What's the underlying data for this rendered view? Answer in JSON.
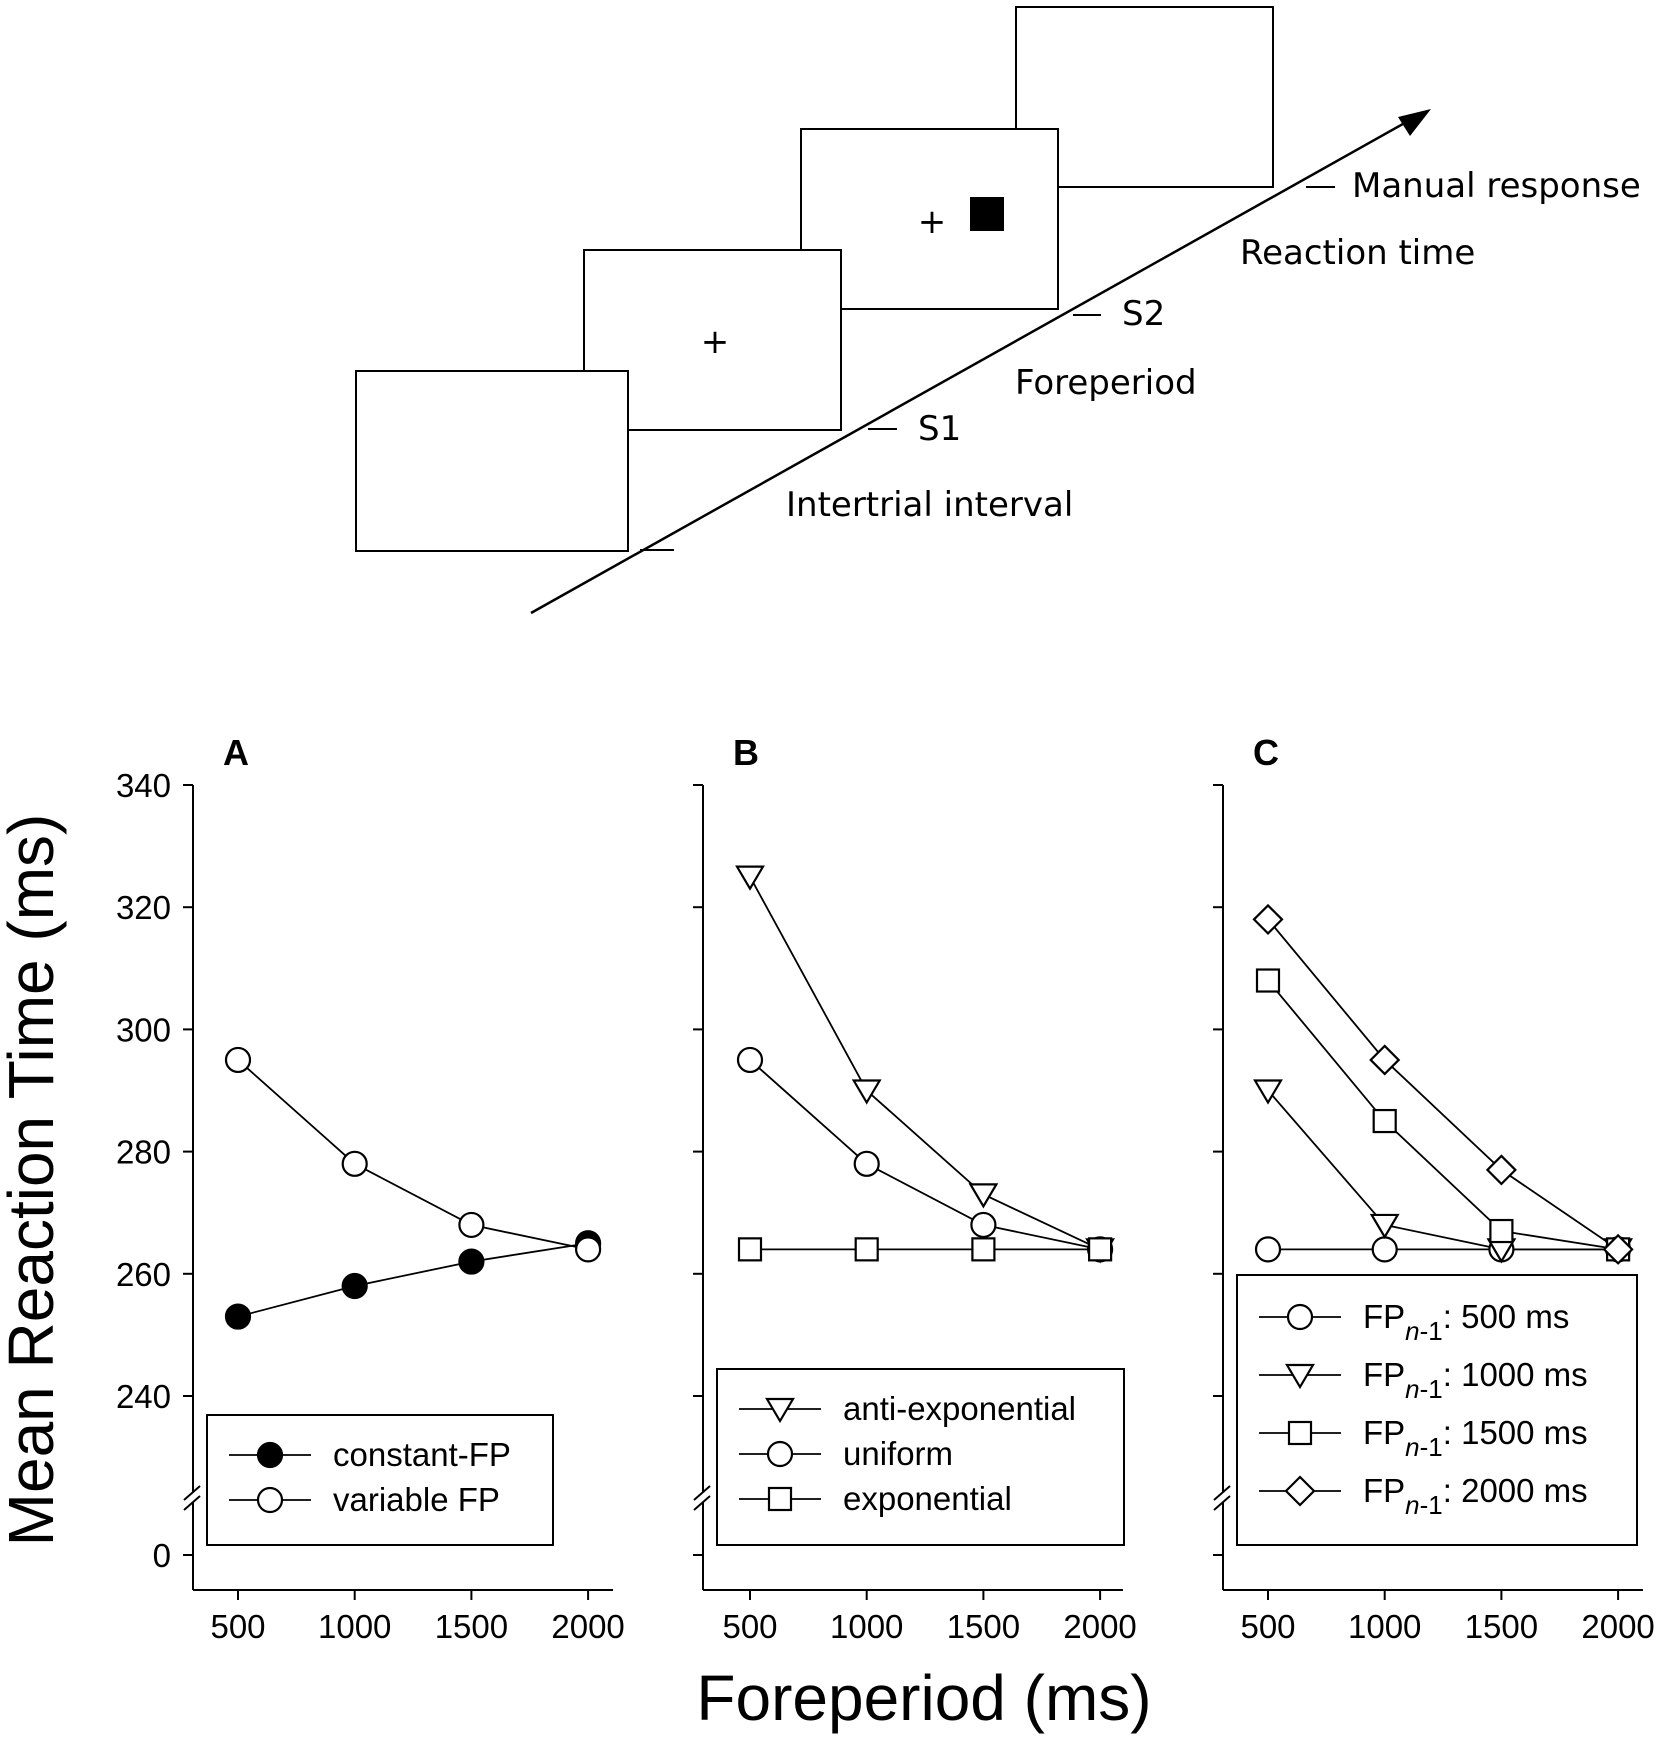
{
  "diagram": {
    "events": {
      "manual_response": "Manual response",
      "reaction_time": "Reaction time",
      "s2": "S2",
      "foreperiod": "Foreperiod",
      "s1": "S1",
      "intertrial_interval": "Intertrial interval"
    },
    "fixation_glyph": "+"
  },
  "chart_data": {
    "type": "line",
    "ylabel": "Mean Reaction Time (ms)",
    "xlabel": "Foreperiod (ms)",
    "ylim": [
      230,
      340
    ],
    "yticks": [
      "340",
      "320",
      "300",
      "280",
      "260",
      "240"
    ],
    "ybreak_tick": "0",
    "x_tick_labels": [
      "500",
      "1000",
      "1500",
      "2000"
    ],
    "panels": [
      {
        "title": "A",
        "x": [
          500,
          1000,
          1500,
          2000
        ],
        "series": [
          {
            "name": "constant-FP",
            "marker": "circle",
            "filled": true,
            "values": [
              253,
              258,
              262,
              265
            ]
          },
          {
            "name": "variable FP",
            "marker": "circle",
            "filled": false,
            "values": [
              295,
              278,
              268,
              264
            ]
          }
        ]
      },
      {
        "title": "B",
        "x": [
          500,
          1000,
          1500,
          2000
        ],
        "series": [
          {
            "name": "anti-exponential",
            "marker": "triangle-down",
            "filled": false,
            "values": [
              325,
              290,
              273,
              264
            ]
          },
          {
            "name": "uniform",
            "marker": "circle",
            "filled": false,
            "values": [
              295,
              278,
              268,
              264
            ]
          },
          {
            "name": "exponential",
            "marker": "square",
            "filled": false,
            "values": [
              264,
              264,
              264,
              264
            ]
          }
        ]
      },
      {
        "title": "C",
        "x": [
          500,
          1000,
          1500,
          2000
        ],
        "series": [
          {
            "name": "FPn-1: 500 ms",
            "legend_prefix": "FP",
            "legend_sub": "n",
            "legend_sub_rest": "-1",
            "legend_rest": ": 500 ms",
            "marker": "circle",
            "filled": false,
            "values": [
              264,
              264,
              264,
              264
            ]
          },
          {
            "name": "FPn-1: 1000 ms",
            "legend_prefix": "FP",
            "legend_sub": "n",
            "legend_sub_rest": "-1",
            "legend_rest": ": 1000 ms",
            "marker": "triangle-down",
            "filled": false,
            "values": [
              290,
              268,
              264,
              264
            ]
          },
          {
            "name": "FPn-1: 1500 ms",
            "legend_prefix": "FP",
            "legend_sub": "n",
            "legend_sub_rest": "-1",
            "legend_rest": ": 1500 ms",
            "marker": "square",
            "filled": false,
            "values": [
              308,
              285,
              267,
              264
            ]
          },
          {
            "name": "FPn-1: 2000 ms",
            "legend_prefix": "FP",
            "legend_sub": "n",
            "legend_sub_rest": "-1",
            "legend_rest": ": 2000 ms",
            "marker": "diamond",
            "filled": false,
            "values": [
              318,
              295,
              277,
              264
            ]
          }
        ]
      }
    ]
  }
}
